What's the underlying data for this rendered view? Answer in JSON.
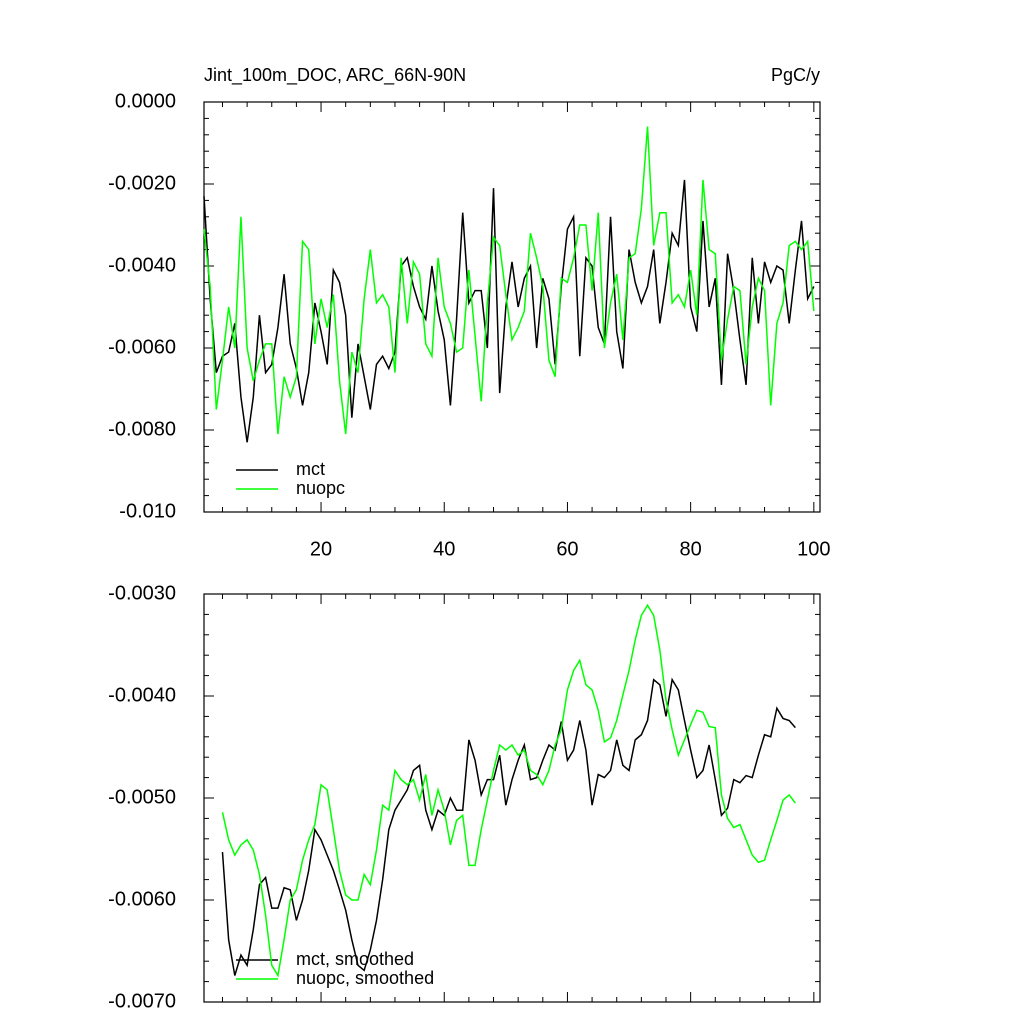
{
  "chart_data": [
    {
      "type": "line",
      "title": "Jint_100m_DOC, ARC_66N-90N",
      "units": "PgC/y",
      "x": [
        1,
        2,
        3,
        4,
        5,
        6,
        7,
        8,
        9,
        10,
        11,
        12,
        13,
        14,
        15,
        16,
        17,
        18,
        19,
        20,
        21,
        22,
        23,
        24,
        25,
        26,
        27,
        28,
        29,
        30,
        31,
        32,
        33,
        34,
        35,
        36,
        37,
        38,
        39,
        40,
        41,
        42,
        43,
        44,
        45,
        46,
        47,
        48,
        49,
        50,
        51,
        52,
        53,
        54,
        55,
        56,
        57,
        58,
        59,
        60,
        61,
        62,
        63,
        64,
        65,
        66,
        67,
        68,
        69,
        70,
        71,
        72,
        73,
        74,
        75,
        76,
        77,
        78,
        79,
        80,
        81,
        82,
        83,
        84,
        85,
        86,
        87,
        88,
        89,
        90,
        91,
        92,
        93,
        94,
        95,
        96,
        97,
        98,
        99,
        100
      ],
      "series": [
        {
          "name": "mct",
          "color": "#000000",
          "values": [
            -0.0023,
            -0.0048,
            -0.0066,
            -0.0062,
            -0.0061,
            -0.0054,
            -0.0072,
            -0.0083,
            -0.0072,
            -0.0052,
            -0.0066,
            -0.0064,
            -0.0055,
            -0.0042,
            -0.0059,
            -0.0065,
            -0.0074,
            -0.0066,
            -0.0049,
            -0.0056,
            -0.0064,
            -0.0041,
            -0.0044,
            -0.0052,
            -0.0077,
            -0.0059,
            -0.0067,
            -0.0075,
            -0.0064,
            -0.0062,
            -0.0065,
            -0.0061,
            -0.004,
            -0.0038,
            -0.0045,
            -0.005,
            -0.0053,
            -0.004,
            -0.0051,
            -0.0058,
            -0.0074,
            -0.0053,
            -0.0027,
            -0.0049,
            -0.0046,
            -0.0046,
            -0.006,
            -0.0021,
            -0.0071,
            -0.005,
            -0.0039,
            -0.005,
            -0.0043,
            -0.004,
            -0.006,
            -0.0043,
            -0.0048,
            -0.0064,
            -0.0045,
            -0.0031,
            -0.0028,
            -0.0062,
            -0.0038,
            -0.004,
            -0.0055,
            -0.0059,
            -0.0028,
            -0.0056,
            -0.0065,
            -0.0036,
            -0.0044,
            -0.0049,
            -0.0045,
            -0.0036,
            -0.0054,
            -0.0044,
            -0.0032,
            -0.0035,
            -0.0019,
            -0.005,
            -0.0056,
            -0.0029,
            -0.005,
            -0.0043,
            -0.0069,
            -0.0037,
            -0.0046,
            -0.0058,
            -0.0069,
            -0.0038,
            -0.0054,
            -0.0039,
            -0.0044,
            -0.004,
            -0.0041,
            -0.0054,
            -0.0041,
            -0.0029,
            -0.0048,
            -0.0045
          ]
        },
        {
          "name": "nuopc",
          "color": "#00ff00",
          "values": [
            -0.0031,
            -0.0045,
            -0.0075,
            -0.0063,
            -0.005,
            -0.006,
            -0.0028,
            -0.006,
            -0.0068,
            -0.0063,
            -0.0059,
            -0.0059,
            -0.0081,
            -0.0067,
            -0.0072,
            -0.0067,
            -0.0034,
            -0.0036,
            -0.0059,
            -0.0048,
            -0.0055,
            -0.0047,
            -0.0068,
            -0.0081,
            -0.0061,
            -0.0066,
            -0.0048,
            -0.0036,
            -0.0049,
            -0.0047,
            -0.005,
            -0.0066,
            -0.0038,
            -0.0054,
            -0.0039,
            -0.0042,
            -0.0059,
            -0.0062,
            -0.0038,
            -0.005,
            -0.0054,
            -0.0061,
            -0.006,
            -0.0041,
            -0.0057,
            -0.0073,
            -0.0049,
            -0.0033,
            -0.0035,
            -0.0047,
            -0.0058,
            -0.0055,
            -0.0051,
            -0.0032,
            -0.0038,
            -0.0045,
            -0.0063,
            -0.0067,
            -0.0043,
            -0.0044,
            -0.0038,
            -0.003,
            -0.003,
            -0.0046,
            -0.0027,
            -0.006,
            -0.0049,
            -0.0042,
            -0.0058,
            -0.0038,
            -0.0037,
            -0.0026,
            -0.0006,
            -0.0035,
            -0.0027,
            -0.0027,
            -0.0049,
            -0.0047,
            -0.005,
            -0.0041,
            -0.0052,
            -0.0019,
            -0.0036,
            -0.0037,
            -0.0063,
            -0.0053,
            -0.0045,
            -0.0046,
            -0.0064,
            -0.005,
            -0.0043,
            -0.0046,
            -0.0074,
            -0.0054,
            -0.0049,
            -0.0035,
            -0.0034,
            -0.0036,
            -0.0034,
            -0.0051
          ]
        }
      ],
      "xlim": [
        1,
        101
      ],
      "xticks": [
        20,
        40,
        60,
        80,
        100
      ],
      "xtick_labels": true,
      "ylim": [
        -0.01,
        0
      ],
      "yticks": [
        {
          "value": -0.01,
          "label": "-0.010"
        },
        {
          "value": -0.008,
          "label": "-0.0080"
        },
        {
          "value": -0.006,
          "label": "-0.0060"
        },
        {
          "value": -0.004,
          "label": "-0.0040"
        },
        {
          "value": -0.002,
          "label": "-0.0020"
        },
        {
          "value": 0,
          "label": "0.0000"
        }
      ],
      "minor_per_major": 4,
      "legend": "lower-left"
    },
    {
      "type": "line",
      "x": [
        4,
        5,
        6,
        7,
        8,
        9,
        10,
        11,
        12,
        13,
        14,
        15,
        16,
        17,
        18,
        19,
        20,
        21,
        22,
        23,
        24,
        25,
        26,
        27,
        28,
        29,
        30,
        31,
        32,
        33,
        34,
        35,
        36,
        37,
        38,
        39,
        40,
        41,
        42,
        43,
        44,
        45,
        46,
        47,
        48,
        49,
        50,
        51,
        52,
        53,
        54,
        55,
        56,
        57,
        58,
        59,
        60,
        61,
        62,
        63,
        64,
        65,
        66,
        67,
        68,
        69,
        70,
        71,
        72,
        73,
        74,
        75,
        76,
        77,
        78,
        79,
        80,
        81,
        82,
        83,
        84,
        85,
        86,
        87,
        88,
        89,
        90,
        91,
        92,
        93,
        94,
        95,
        96,
        97
      ],
      "series": [
        {
          "name": "mct, smoothed",
          "color": "#000000",
          "values": [
            -0.00553,
            -0.00639,
            -0.00674,
            -0.00654,
            -0.00664,
            -0.00629,
            -0.00585,
            -0.00578,
            -0.00608,
            -0.00608,
            -0.00588,
            -0.0059,
            -0.0062,
            -0.006,
            -0.00571,
            -0.00531,
            -0.00541,
            -0.00556,
            -0.00571,
            -0.0059,
            -0.0061,
            -0.00639,
            -0.00664,
            -0.00669,
            -0.00649,
            -0.0062,
            -0.0058,
            -0.00531,
            -0.00512,
            -0.00502,
            -0.00492,
            -0.00473,
            -0.00468,
            -0.00512,
            -0.00531,
            -0.00512,
            -0.00517,
            -0.005,
            -0.00512,
            -0.00512,
            -0.00443,
            -0.00463,
            -0.00497,
            -0.00482,
            -0.00482,
            -0.00458,
            -0.00507,
            -0.00482,
            -0.00463,
            -0.00448,
            -0.00482,
            -0.0048,
            -0.00463,
            -0.00448,
            -0.00453,
            -0.00425,
            -0.00463,
            -0.00453,
            -0.00424,
            -0.00453,
            -0.00507,
            -0.00477,
            -0.0048,
            -0.00473,
            -0.00443,
            -0.00468,
            -0.00473,
            -0.00443,
            -0.00438,
            -0.00424,
            -0.00384,
            -0.00389,
            -0.0042,
            -0.00384,
            -0.00394,
            -0.00424,
            -0.00453,
            -0.0048,
            -0.00473,
            -0.00448,
            -0.00482,
            -0.00517,
            -0.0051,
            -0.00482,
            -0.00485,
            -0.00478,
            -0.0048,
            -0.00458,
            -0.00438,
            -0.0044,
            -0.00412,
            -0.00422,
            -0.00424,
            -0.00431
          ]
        },
        {
          "name": "nuopc, smoothed",
          "color": "#00ff00",
          "values": [
            -0.00514,
            -0.00541,
            -0.00556,
            -0.00546,
            -0.00541,
            -0.00551,
            -0.00575,
            -0.00615,
            -0.00664,
            -0.00674,
            -0.00639,
            -0.006,
            -0.0059,
            -0.00561,
            -0.00541,
            -0.00526,
            -0.00487,
            -0.00492,
            -0.00531,
            -0.00571,
            -0.00595,
            -0.006,
            -0.006,
            -0.00575,
            -0.00585,
            -0.00551,
            -0.00507,
            -0.00512,
            -0.00473,
            -0.00482,
            -0.00487,
            -0.00482,
            -0.00502,
            -0.00477,
            -0.00517,
            -0.00492,
            -0.00512,
            -0.00546,
            -0.00522,
            -0.00517,
            -0.00566,
            -0.00566,
            -0.00531,
            -0.00502,
            -0.00473,
            -0.00448,
            -0.00453,
            -0.00448,
            -0.00458,
            -0.00453,
            -0.00473,
            -0.00477,
            -0.00487,
            -0.00473,
            -0.00448,
            -0.00433,
            -0.00394,
            -0.00375,
            -0.00365,
            -0.00389,
            -0.00394,
            -0.00414,
            -0.00445,
            -0.00441,
            -0.00424,
            -0.00399,
            -0.00375,
            -0.00345,
            -0.00321,
            -0.00311,
            -0.00321,
            -0.00355,
            -0.00404,
            -0.00433,
            -0.00458,
            -0.00443,
            -0.00428,
            -0.00414,
            -0.00416,
            -0.0043,
            -0.00431,
            -0.00497,
            -0.0052,
            -0.00529,
            -0.00526,
            -0.00541,
            -0.00556,
            -0.00563,
            -0.00561,
            -0.00541,
            -0.00522,
            -0.00502,
            -0.00497,
            -0.00505
          ]
        }
      ],
      "xlim": [
        1,
        101
      ],
      "xticks": [
        20,
        40,
        60,
        80,
        100
      ],
      "xtick_labels": false,
      "ylim": [
        -0.007,
        -0.003
      ],
      "yticks": [
        {
          "value": -0.007,
          "label": "-0.0070"
        },
        {
          "value": -0.006,
          "label": "-0.0060"
        },
        {
          "value": -0.005,
          "label": "-0.0050"
        },
        {
          "value": -0.004,
          "label": "-0.0040"
        },
        {
          "value": -0.003,
          "label": "-0.0030"
        }
      ],
      "minor_per_major": 4,
      "legend": "lower-left"
    }
  ]
}
